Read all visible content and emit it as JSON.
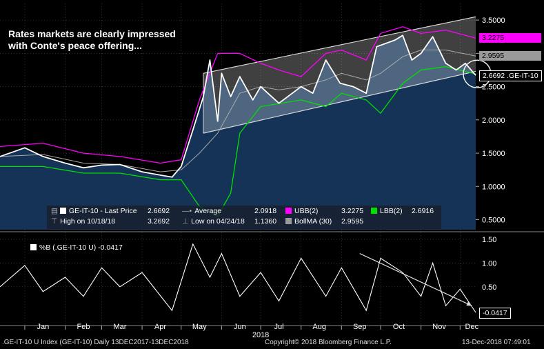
{
  "headline_lines": [
    "Rates markets are clearly impressed",
    "with Conte's peace offering..."
  ],
  "legend": {
    "last_label": "GE-IT-10 - Last Price",
    "last_value": "2.6692",
    "avg_label": "Average",
    "avg_value": "2.0918",
    "ubb_label": "UBB(2)",
    "ubb_value": "3.2275",
    "lbb_label": "LBB(2)",
    "lbb_value": "2.6916",
    "high_label": "High on 10/18/18",
    "high_value": "3.2692",
    "low_label": "Low on 04/24/18",
    "low_value": "1.1360",
    "bollma_label": "BollMA (30)",
    "bollma_value": "2.9595"
  },
  "tags": {
    "ubb": "3.2275",
    "bollma": "2.9595",
    "last": "2.6692 .GE-IT-10"
  },
  "indicator": {
    "legend": "%B (.GE-IT-10 U)  -0.0417",
    "tag": "-0.0417"
  },
  "footer": {
    "left": ".GE-IT-10 U Index (GE-IT-10)  Daily 13DEC2017-13DEC2018",
    "center": "Copyright© 2018 Bloomberg Finance L.P.",
    "right": "13-Dec-2018 07:49:01"
  },
  "colors": {
    "price": "#ffffff",
    "area": "#16365c",
    "ubb": "#ff00ff",
    "lbb": "#00e000",
    "bollma": "#aaaaaa",
    "channel": "#d8d8d8",
    "tag_last_bg": "#000000",
    "tag_ubb_bg": "#ff00ff",
    "tag_bollma_bg": "#9a9a9a",
    "grid": "#555555"
  },
  "chart_data": [
    {
      "type": "line",
      "title": "",
      "x_axis": {
        "months": [
          "Jan",
          "Feb",
          "Mar",
          "Apr",
          "May",
          "Jun",
          "Jul",
          "Aug",
          "Sep",
          "Oct",
          "Nov",
          "Dec"
        ],
        "year_label": "2018",
        "range": [
          "2017-12-13",
          "2018-12-13"
        ]
      },
      "y_axis": {
        "ticks": [
          "3.5000",
          "3.0000",
          "2.5000",
          "2.0000",
          "1.5000",
          "1.0000",
          "0.5000"
        ],
        "range": [
          0.35,
          3.75
        ],
        "position": "right"
      },
      "series": [
        {
          "name": "GE-IT-10 - Last Price",
          "x": [
            "2017-12-13",
            "2018-01-01",
            "2018-01-15",
            "2018-02-01",
            "2018-02-15",
            "2018-03-01",
            "2018-03-15",
            "2018-04-01",
            "2018-04-15",
            "2018-04-24",
            "2018-05-01",
            "2018-05-10",
            "2018-05-18",
            "2018-05-23",
            "2018-05-29",
            "2018-06-01",
            "2018-06-08",
            "2018-06-15",
            "2018-06-25",
            "2018-07-01",
            "2018-07-15",
            "2018-08-01",
            "2018-08-10",
            "2018-08-20",
            "2018-08-31",
            "2018-09-10",
            "2018-09-20",
            "2018-09-28",
            "2018-10-05",
            "2018-10-12",
            "2018-10-18",
            "2018-10-25",
            "2018-11-01",
            "2018-11-10",
            "2018-11-20",
            "2018-11-28",
            "2018-12-05",
            "2018-12-13"
          ],
          "values": [
            1.45,
            1.58,
            1.45,
            1.35,
            1.28,
            1.32,
            1.33,
            1.22,
            1.17,
            1.14,
            1.3,
            1.85,
            2.35,
            2.9,
            1.98,
            2.7,
            2.35,
            2.65,
            2.3,
            2.5,
            2.25,
            2.5,
            2.4,
            2.9,
            2.55,
            2.5,
            2.4,
            3.1,
            3.15,
            3.2,
            3.27,
            2.9,
            3.0,
            3.25,
            2.85,
            2.75,
            2.85,
            2.67
          ]
        },
        {
          "name": "UBB(2)",
          "x": [
            "2017-12-13",
            "2018-01-15",
            "2018-02-15",
            "2018-03-15",
            "2018-04-15",
            "2018-05-01",
            "2018-05-15",
            "2018-05-29",
            "2018-06-15",
            "2018-07-01",
            "2018-07-15",
            "2018-08-01",
            "2018-08-20",
            "2018-09-01",
            "2018-09-20",
            "2018-10-01",
            "2018-10-18",
            "2018-11-01",
            "2018-11-20",
            "2018-12-13"
          ],
          "values": [
            1.6,
            1.65,
            1.5,
            1.45,
            1.35,
            1.4,
            2.3,
            3.0,
            3.0,
            2.85,
            2.75,
            2.65,
            3.0,
            3.05,
            2.9,
            3.3,
            3.4,
            3.3,
            3.35,
            3.23
          ]
        },
        {
          "name": "LBB(2)",
          "x": [
            "2017-12-13",
            "2018-01-15",
            "2018-02-15",
            "2018-03-15",
            "2018-04-15",
            "2018-05-01",
            "2018-05-15",
            "2018-05-29",
            "2018-06-08",
            "2018-06-15",
            "2018-07-01",
            "2018-08-01",
            "2018-08-20",
            "2018-09-01",
            "2018-09-20",
            "2018-10-01",
            "2018-10-18",
            "2018-11-01",
            "2018-11-20",
            "2018-12-13"
          ],
          "values": [
            1.3,
            1.3,
            1.2,
            1.2,
            1.1,
            1.1,
            0.7,
            0.55,
            0.9,
            1.8,
            2.2,
            2.3,
            2.2,
            2.4,
            2.3,
            2.1,
            2.55,
            2.75,
            2.8,
            2.69
          ]
        },
        {
          "name": "BollMA (30)",
          "x": [
            "2017-12-13",
            "2018-01-15",
            "2018-02-15",
            "2018-03-15",
            "2018-04-15",
            "2018-05-01",
            "2018-05-15",
            "2018-05-29",
            "2018-06-15",
            "2018-07-01",
            "2018-07-15",
            "2018-08-01",
            "2018-08-20",
            "2018-09-01",
            "2018-09-20",
            "2018-10-01",
            "2018-10-18",
            "2018-11-01",
            "2018-11-20",
            "2018-12-13"
          ],
          "values": [
            1.45,
            1.48,
            1.35,
            1.33,
            1.22,
            1.25,
            1.5,
            1.8,
            2.4,
            2.5,
            2.45,
            2.5,
            2.6,
            2.7,
            2.6,
            2.7,
            2.95,
            3.05,
            3.05,
            2.96
          ]
        }
      ],
      "channel": {
        "upper": {
          "x": [
            "2018-05-18",
            "2018-12-13"
          ],
          "values": [
            2.7,
            3.55
          ]
        },
        "lower": {
          "x": [
            "2018-05-18",
            "2018-12-13"
          ],
          "values": [
            1.8,
            2.73
          ]
        }
      },
      "legend_position": "bottom-center",
      "grid": true
    },
    {
      "type": "line",
      "title": "",
      "y_axis": {
        "ticks": [
          "1.50",
          "1.00",
          "0.50"
        ],
        "range": [
          -0.2,
          1.6
        ],
        "position": "right"
      },
      "series": [
        {
          "name": "%B (.GE-IT-10 U)",
          "x": [
            "2017-12-13",
            "2018-01-01",
            "2018-01-15",
            "2018-02-01",
            "2018-02-15",
            "2018-03-01",
            "2018-03-15",
            "2018-04-01",
            "2018-04-24",
            "2018-05-10",
            "2018-05-23",
            "2018-06-01",
            "2018-06-15",
            "2018-07-01",
            "2018-07-15",
            "2018-08-01",
            "2018-08-20",
            "2018-09-01",
            "2018-09-20",
            "2018-10-01",
            "2018-10-18",
            "2018-11-01",
            "2018-11-10",
            "2018-11-20",
            "2018-12-01",
            "2018-12-13"
          ],
          "values": [
            0.5,
            0.95,
            0.4,
            0.7,
            0.3,
            0.9,
            0.5,
            0.8,
            0.0,
            1.4,
            0.7,
            1.2,
            0.3,
            0.8,
            0.2,
            1.1,
            0.3,
            0.9,
            0.0,
            1.1,
            0.8,
            0.3,
            1.0,
            0.1,
            0.45,
            -0.04
          ]
        }
      ],
      "trendline": {
        "x": [
          "2018-09-15",
          "2018-12-10"
        ],
        "values": [
          1.2,
          0.1
        ]
      },
      "grid": true
    }
  ]
}
